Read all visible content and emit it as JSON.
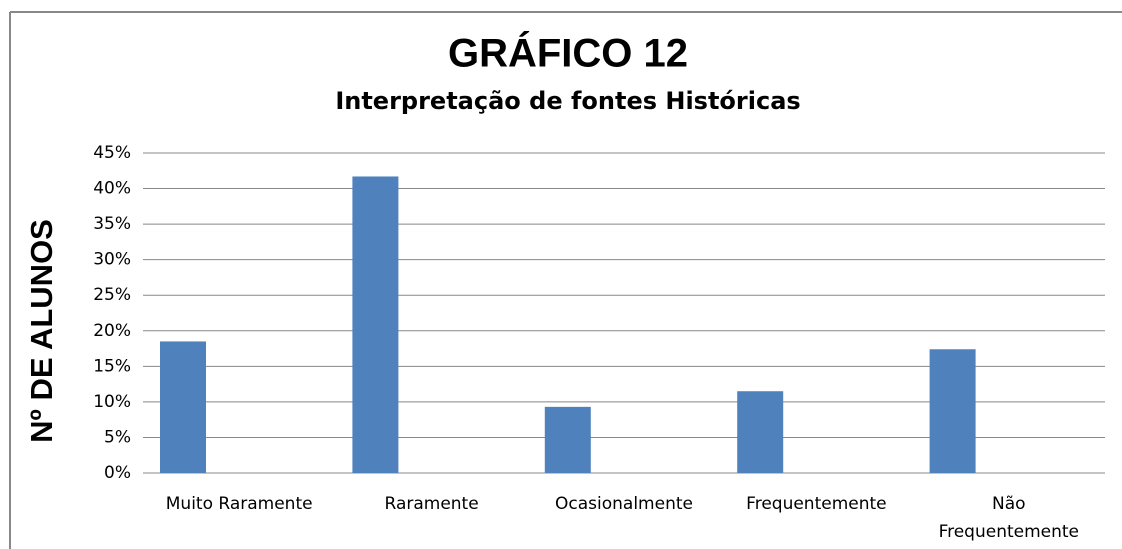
{
  "chart_data": {
    "type": "bar",
    "title": "GRÁFICO 12",
    "subtitle": "Interpretação de fontes Históricas",
    "y_label": "Nº DE ALUNOS",
    "categories": [
      "Muito Raramente",
      "Raramente",
      "Ocasionalmente",
      "Frequentemente",
      "Não Frequentemente"
    ],
    "values": [
      18.5,
      41.7,
      9.3,
      11.5,
      17.4
    ],
    "color": "#4f81bd",
    "ylim": [
      0,
      45
    ],
    "yticks": [
      {
        "value": 0,
        "label": "0%"
      },
      {
        "value": 5,
        "label": "5%"
      },
      {
        "value": 10,
        "label": "10%"
      },
      {
        "value": 15,
        "label": "15%"
      },
      {
        "value": 20,
        "label": "20%"
      },
      {
        "value": 25,
        "label": "25%"
      },
      {
        "value": 30,
        "label": "30%"
      },
      {
        "value": 35,
        "label": "35%"
      },
      {
        "value": 40,
        "label": "40%"
      },
      {
        "value": 45,
        "label": "45%"
      }
    ],
    "grid": true
  }
}
